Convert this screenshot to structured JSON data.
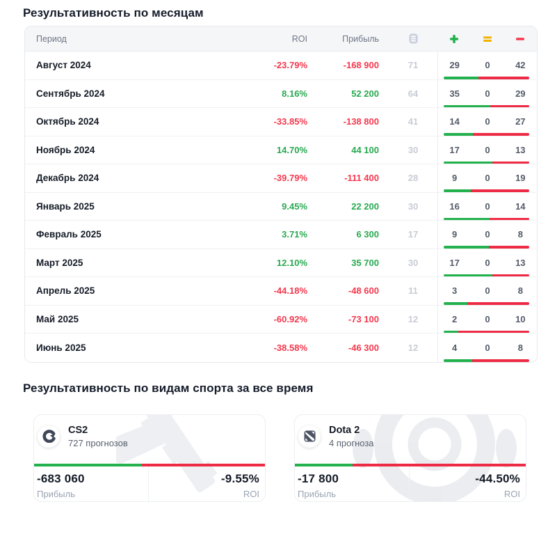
{
  "monthly": {
    "title": "Результативность по месяцам",
    "columns": {
      "period": "Период",
      "roi": "ROI",
      "profit": "Прибыль"
    },
    "header_icons": [
      "bets-count-icon",
      "wins-plus-icon",
      "draws-equals-icon",
      "losses-minus-icon"
    ],
    "rows": [
      {
        "period": "Август 2024",
        "roi": "-23.79%",
        "profit": "-168 900",
        "total": "71",
        "wins": "29",
        "draws": "0",
        "losses": "42"
      },
      {
        "period": "Сентябрь 2024",
        "roi": "8.16%",
        "profit": "52 200",
        "total": "64",
        "wins": "35",
        "draws": "0",
        "losses": "29"
      },
      {
        "period": "Октябрь 2024",
        "roi": "-33.85%",
        "profit": "-138 800",
        "total": "41",
        "wins": "14",
        "draws": "0",
        "losses": "27"
      },
      {
        "period": "Ноябрь 2024",
        "roi": "14.70%",
        "profit": "44 100",
        "total": "30",
        "wins": "17",
        "draws": "0",
        "losses": "13"
      },
      {
        "period": "Декабрь 2024",
        "roi": "-39.79%",
        "profit": "-111 400",
        "total": "28",
        "wins": "9",
        "draws": "0",
        "losses": "19"
      },
      {
        "period": "Январь 2025",
        "roi": "9.45%",
        "profit": "22 200",
        "total": "30",
        "wins": "16",
        "draws": "0",
        "losses": "14"
      },
      {
        "period": "Февраль 2025",
        "roi": "3.71%",
        "profit": "6 300",
        "total": "17",
        "wins": "9",
        "draws": "0",
        "losses": "8"
      },
      {
        "period": "Март 2025",
        "roi": "12.10%",
        "profit": "35 700",
        "total": "30",
        "wins": "17",
        "draws": "0",
        "losses": "13"
      },
      {
        "period": "Апрель 2025",
        "roi": "-44.18%",
        "profit": "-48 600",
        "total": "11",
        "wins": "3",
        "draws": "0",
        "losses": "8"
      },
      {
        "period": "Май 2025",
        "roi": "-60.92%",
        "profit": "-73 100",
        "total": "12",
        "wins": "2",
        "draws": "0",
        "losses": "10"
      },
      {
        "period": "Июнь 2025",
        "roi": "-38.58%",
        "profit": "-46 300",
        "total": "12",
        "wins": "4",
        "draws": "0",
        "losses": "8"
      }
    ]
  },
  "sports": {
    "title": "Результативность по видам спорта за все время",
    "cards": [
      {
        "name": "CS2",
        "forecasts": "727 прогнозов",
        "profit": "-683 060",
        "profit_label": "Прибыль",
        "roi": "-9.55%",
        "roi_label": "ROI",
        "win_pct": 46.7,
        "logo": "cs2",
        "watermark": "pistol"
      },
      {
        "name": "Dota 2",
        "forecasts": "4 прогноза",
        "profit": "-17 800",
        "profit_label": "Прибыль",
        "roi": "-44.50%",
        "roi_label": "ROI",
        "win_pct": 25.1,
        "logo": "dota2",
        "watermark": "aegis"
      }
    ]
  },
  "colors": {
    "green": "#28aa50",
    "red": "#f4384e",
    "bar_green": "#22b14c",
    "bar_red": "#ee2b45",
    "amber": "#f2b300",
    "muted_icon": "#c9cfdd"
  }
}
